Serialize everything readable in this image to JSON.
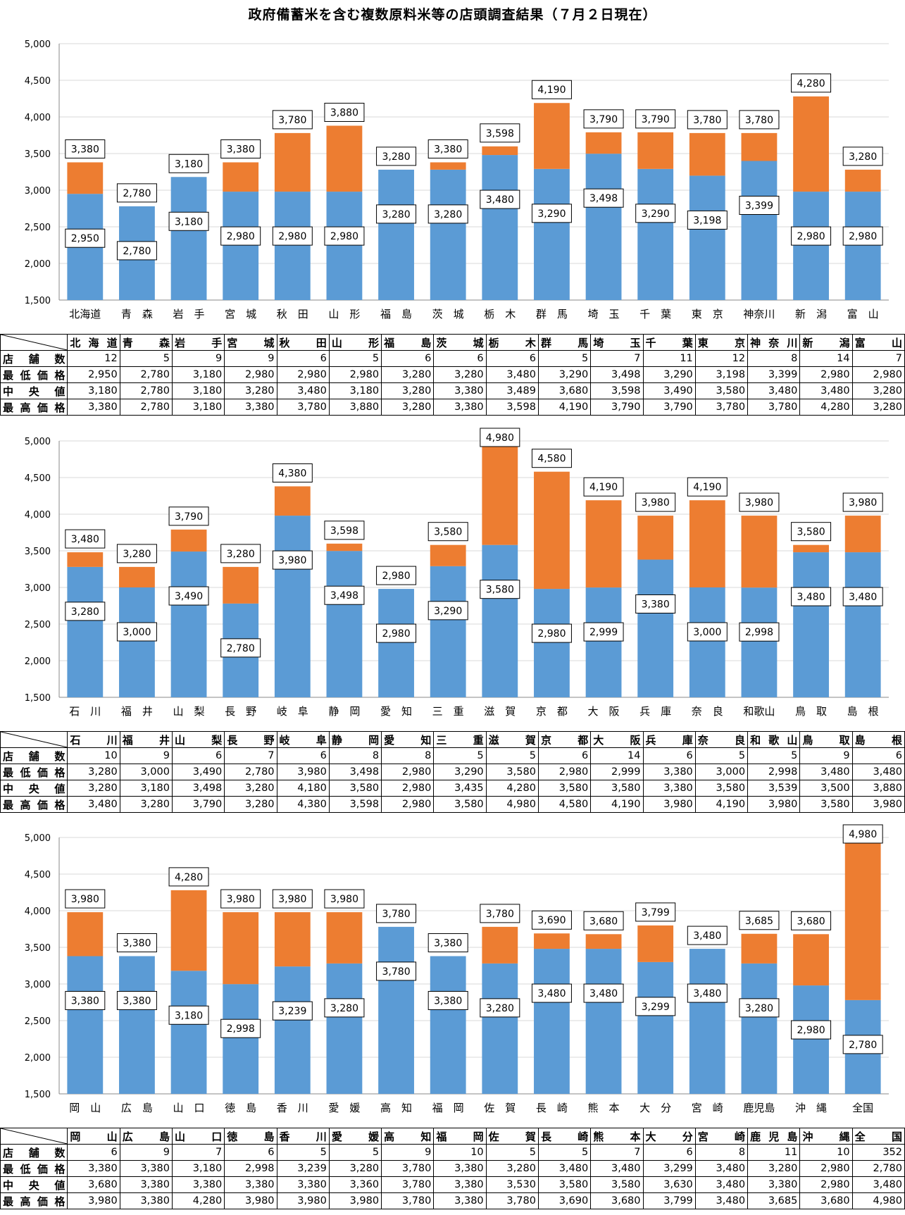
{
  "title": "政府備蓄米を含む複数原料米等の店頭調査結果（７月２日現在）",
  "colors": {
    "low": "#5B9BD5",
    "high": "#ED7D31",
    "grid": "#D9D9D9"
  },
  "row_labels": [
    "店舗数",
    "最低価格",
    "中央値",
    "最高価格"
  ],
  "chart_data": [
    {
      "type": "bar",
      "stacked": true,
      "ylim": [
        1500,
        5000
      ],
      "yticks": [
        "1,500",
        "2,000",
        "2,500",
        "3,000",
        "3,500",
        "4,000",
        "4,500",
        "5,000"
      ],
      "grid": true,
      "categories": [
        "北海道",
        "青　森",
        "岩　手",
        "宮　城",
        "秋　田",
        "山　形",
        "福　島",
        "茨　城",
        "栃　木",
        "群　馬",
        "埼　玉",
        "千　葉",
        "東　京",
        "神奈川",
        "新　潟",
        "富　山"
      ],
      "table_headers": [
        "北海道",
        "青　森",
        "岩　手",
        "宮　城",
        "秋　田",
        "山　形",
        "福　島",
        "茨　城",
        "栃　木",
        "群　馬",
        "埼　玉",
        "千　葉",
        "東　京",
        "神奈川",
        "新　潟",
        "富　山"
      ],
      "stores": [
        "12",
        "5",
        "9",
        "9",
        "6",
        "5",
        "6",
        "6",
        "6",
        "5",
        "7",
        "11",
        "12",
        "8",
        "14",
        "7"
      ],
      "min": [
        2950,
        2780,
        3180,
        2980,
        2980,
        2980,
        3280,
        3280,
        3480,
        3290,
        3498,
        3290,
        3198,
        3399,
        2980,
        2980
      ],
      "min_labels": [
        "2,950",
        "2,780",
        "3,180",
        "2,980",
        "2,980",
        "2,980",
        "3,280",
        "3,280",
        "3,480",
        "3,290",
        "3,498",
        "3,290",
        "3,198",
        "3,399",
        "2,980",
        "2,980"
      ],
      "median_labels": [
        "3,180",
        "2,780",
        "3,180",
        "3,280",
        "3,480",
        "3,180",
        "3,280",
        "3,380",
        "3,489",
        "3,680",
        "3,598",
        "3,490",
        "3,580",
        "3,480",
        "3,480",
        "3,280"
      ],
      "max": [
        3380,
        2780,
        3180,
        3380,
        3780,
        3880,
        3280,
        3380,
        3598,
        4190,
        3790,
        3790,
        3780,
        3780,
        4280,
        3280
      ],
      "max_labels": [
        "3,380",
        "2,780",
        "3,180",
        "3,380",
        "3,780",
        "3,880",
        "3,280",
        "3,380",
        "3,598",
        "4,190",
        "3,790",
        "3,790",
        "3,780",
        "3,780",
        "4,280",
        "3,280"
      ]
    },
    {
      "type": "bar",
      "stacked": true,
      "ylim": [
        1500,
        5000
      ],
      "yticks": [
        "1,500",
        "2,000",
        "2,500",
        "3,000",
        "3,500",
        "4,000",
        "4,500",
        "5,000"
      ],
      "grid": true,
      "categories": [
        "石　川",
        "福　井",
        "山　梨",
        "長　野",
        "岐　阜",
        "静　岡",
        "愛　知",
        "三　重",
        "滋　賀",
        "京　都",
        "大　阪",
        "兵　庫",
        "奈　良",
        "和歌山",
        "鳥　取",
        "島　根"
      ],
      "table_headers": [
        "石　川",
        "福　井",
        "山　梨",
        "長　野",
        "岐　阜",
        "静　岡",
        "愛　知",
        "三　重",
        "滋　賀",
        "京　都",
        "大　阪",
        "兵　庫",
        "奈　良",
        "和歌山",
        "鳥　取",
        "島　根"
      ],
      "stores": [
        "10",
        "9",
        "6",
        "7",
        "6",
        "8",
        "8",
        "5",
        "5",
        "6",
        "14",
        "6",
        "5",
        "5",
        "9",
        "6"
      ],
      "min": [
        3280,
        3000,
        3490,
        2780,
        3980,
        3498,
        2980,
        3290,
        3580,
        2980,
        2999,
        3380,
        3000,
        2998,
        3480,
        3480
      ],
      "min_labels": [
        "3,280",
        "3,000",
        "3,490",
        "2,780",
        "3,980",
        "3,498",
        "2,980",
        "3,290",
        "3,580",
        "2,980",
        "2,999",
        "3,380",
        "3,000",
        "2,998",
        "3,480",
        "3,480"
      ],
      "median_labels": [
        "3,280",
        "3,180",
        "3,498",
        "3,280",
        "4,180",
        "3,580",
        "2,980",
        "3,435",
        "4,280",
        "3,580",
        "3,580",
        "3,380",
        "3,580",
        "3,539",
        "3,500",
        "3,880"
      ],
      "max": [
        3480,
        3280,
        3790,
        3280,
        4380,
        3598,
        2980,
        3580,
        4980,
        4580,
        4190,
        3980,
        4190,
        3980,
        3580,
        3980
      ],
      "max_labels": [
        "3,480",
        "3,280",
        "3,790",
        "3,280",
        "4,380",
        "3,598",
        "2,980",
        "3,580",
        "4,980",
        "4,580",
        "4,190",
        "3,980",
        "4,190",
        "3,980",
        "3,580",
        "3,980"
      ]
    },
    {
      "type": "bar",
      "stacked": true,
      "ylim": [
        1500,
        5000
      ],
      "yticks": [
        "1,500",
        "2,000",
        "2,500",
        "3,000",
        "3,500",
        "4,000",
        "4,500",
        "5,000"
      ],
      "grid": true,
      "categories": [
        "岡　山",
        "広　島",
        "山　口",
        "徳　島",
        "香　川",
        "愛　媛",
        "高　知",
        "福　岡",
        "佐　賀",
        "長　崎",
        "熊　本",
        "大　分",
        "宮　崎",
        "鹿児島",
        "沖　縄",
        "全国"
      ],
      "table_headers": [
        "岡　山",
        "広　島",
        "山　口",
        "徳　島",
        "香　川",
        "愛　媛",
        "高　知",
        "福　岡",
        "佐　賀",
        "長　崎",
        "熊　本",
        "大　分",
        "宮　崎",
        "鹿児島",
        "沖　縄",
        "全国"
      ],
      "stores": [
        "6",
        "9",
        "7",
        "6",
        "5",
        "5",
        "9",
        "10",
        "5",
        "5",
        "7",
        "6",
        "8",
        "11",
        "10",
        "352"
      ],
      "min": [
        3380,
        3380,
        3180,
        2998,
        3239,
        3280,
        3780,
        3380,
        3280,
        3480,
        3480,
        3299,
        3480,
        3280,
        2980,
        2780
      ],
      "min_labels": [
        "3,380",
        "3,380",
        "3,180",
        "2,998",
        "3,239",
        "3,280",
        "3,780",
        "3,380",
        "3,280",
        "3,480",
        "3,480",
        "3,299",
        "3,480",
        "3,280",
        "2,980",
        "2,780"
      ],
      "median_labels": [
        "3,680",
        "3,380",
        "3,380",
        "3,380",
        "3,380",
        "3,360",
        "3,780",
        "3,380",
        "3,530",
        "3,580",
        "3,580",
        "3,630",
        "3,480",
        "3,380",
        "2,980",
        "3,480"
      ],
      "max": [
        3980,
        3380,
        4280,
        3980,
        3980,
        3980,
        3780,
        3380,
        3780,
        3690,
        3680,
        3799,
        3480,
        3685,
        3680,
        4980
      ],
      "max_labels": [
        "3,980",
        "3,380",
        "4,280",
        "3,980",
        "3,980",
        "3,980",
        "3,780",
        "3,380",
        "3,780",
        "3,690",
        "3,680",
        "3,799",
        "3,480",
        "3,685",
        "3,680",
        "4,980"
      ]
    }
  ]
}
